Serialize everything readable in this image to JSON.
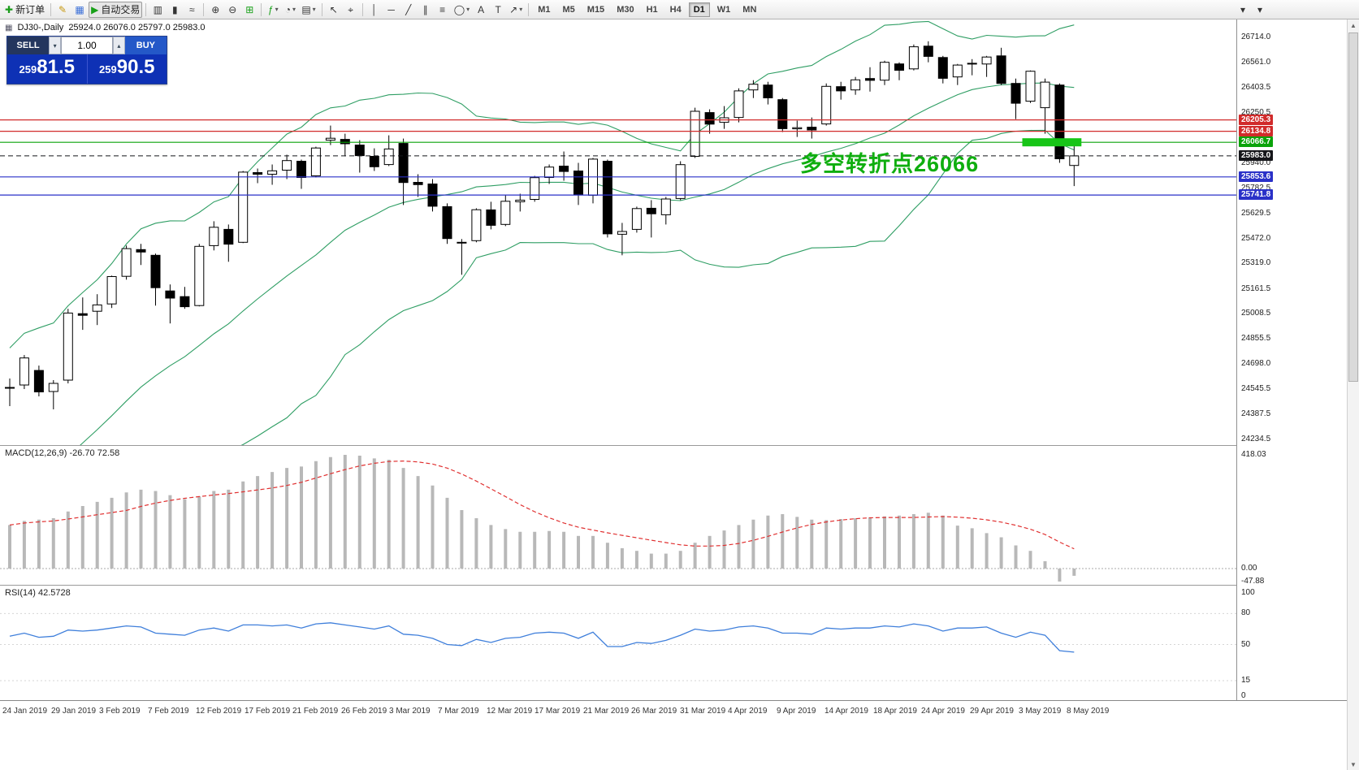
{
  "toolbar": {
    "items": [
      {
        "type": "btn",
        "name": "new-order",
        "glyph": "✚",
        "glyph_color": "#1a9c1a",
        "label": "新订单"
      },
      {
        "type": "sep"
      },
      {
        "type": "btn",
        "name": "metaeditor",
        "glyph": "✎",
        "glyph_color": "#c79810"
      },
      {
        "type": "btn",
        "name": "market",
        "glyph": "▦",
        "glyph_color": "#3a6fd8"
      },
      {
        "type": "btn",
        "name": "auto-trading",
        "glyph": "▶",
        "glyph_color": "#18a018",
        "label": "自动交易",
        "pressed": true
      },
      {
        "type": "sep"
      },
      {
        "type": "btn",
        "name": "bar-chart-mode",
        "glyph": "▥"
      },
      {
        "type": "btn",
        "name": "candlest-mode",
        "glyph": "▮"
      },
      {
        "type": "btn",
        "name": "line-chart-mode",
        "glyph": "≈"
      },
      {
        "type": "sep"
      },
      {
        "type": "btn",
        "name": "zoom-in",
        "glyph": "⊕"
      },
      {
        "type": "btn",
        "name": "zoom-out",
        "glyph": "⊖"
      },
      {
        "type": "btn",
        "name": "tile-windows",
        "glyph": "⊞",
        "glyph_color": "#18a018"
      },
      {
        "type": "sep"
      },
      {
        "type": "btn",
        "name": "indicators",
        "glyph": "ƒ",
        "glyph_color": "#18a018",
        "dropdown": true
      },
      {
        "type": "btn",
        "name": "periods",
        "glyph": "◔",
        "dropdown": true
      },
      {
        "type": "btn",
        "name": "templates",
        "glyph": "▤",
        "dropdown": true
      },
      {
        "type": "sep"
      },
      {
        "type": "btn",
        "name": "cursor",
        "glyph": "↖"
      },
      {
        "type": "btn",
        "name": "crosshair",
        "glyph": "⌖"
      },
      {
        "type": "sep"
      },
      {
        "type": "btn",
        "name": "vertical-line",
        "glyph": "│"
      },
      {
        "type": "btn",
        "name": "horizontal-line",
        "glyph": "─"
      },
      {
        "type": "btn",
        "name": "trendline",
        "glyph": "╱"
      },
      {
        "type": "btn",
        "name": "equidistant-channel",
        "glyph": "∥"
      },
      {
        "type": "btn",
        "name": "fibonacci",
        "glyph": "≡"
      },
      {
        "type": "btn",
        "name": "shapes",
        "glyph": "◯",
        "dropdown": true
      },
      {
        "type": "btn",
        "name": "text",
        "glyph": "A"
      },
      {
        "type": "btn",
        "name": "text-label",
        "glyph": "T"
      },
      {
        "type": "btn",
        "name": "arrows",
        "glyph": "↗",
        "dropdown": true
      },
      {
        "type": "sep"
      }
    ],
    "timeframes": [
      "M1",
      "M5",
      "M15",
      "M30",
      "H1",
      "H4",
      "D1",
      "W1",
      "MN"
    ],
    "active_timeframe": "D1"
  },
  "header": {
    "symbol": "DJ30-,Daily",
    "ohlc": "25924.0 26076.0 25797.0 25983.0"
  },
  "order_panel": {
    "sell_label": "SELL",
    "buy_label": "BUY",
    "volume": "1.00",
    "sell_price": {
      "small": "259",
      "big": "81",
      "frac": ".5"
    },
    "buy_price": {
      "small": "259",
      "big": "90",
      "frac": ".5"
    }
  },
  "main_chart": {
    "annotation": {
      "text": "多空转折点26066",
      "color": "#0fae0f"
    },
    "highlight": {
      "from_candle": 70,
      "to_candle": 73,
      "price": "26066.7",
      "color": "#17c517"
    }
  },
  "price_axis": {
    "ticks": [
      "26714.0",
      "26561.0",
      "26403.5",
      "26250.5",
      "25940.0",
      "25782.5",
      "25629.5",
      "25472.0",
      "25319.0",
      "25161.5",
      "25008.5",
      "24855.5",
      "24698.0",
      "24545.5",
      "24387.5",
      "24234.5"
    ],
    "levels": [
      {
        "value": "26205.3",
        "color": "#d12b2b"
      },
      {
        "value": "26134.8",
        "color": "#d12b2b"
      },
      {
        "value": "26066.7",
        "color": "#0aa30a"
      },
      {
        "value": "25983.0",
        "color": "#15161a",
        "dashed": true,
        "current": true
      },
      {
        "value": "25853.6",
        "color": "#2a31c8"
      },
      {
        "value": "25741.8",
        "color": "#2a31c8"
      }
    ]
  },
  "macd_panel": {
    "label": "MACD(12,26,9) -26.70 72.58",
    "axis": [
      "418.03",
      "0.00",
      "-47.88"
    ]
  },
  "rsi_panel": {
    "label": "RSI(14) 42.5728",
    "axis": [
      "100",
      "80",
      "50",
      "15",
      "0"
    ]
  },
  "date_axis": [
    "24 Jan 2019",
    "29 Jan 2019",
    "3 Feb 2019",
    "7 Feb 2019",
    "12 Feb 2019",
    "17 Feb 2019",
    "21 Feb 2019",
    "26 Feb 2019",
    "3 Mar 2019",
    "7 Mar 2019",
    "12 Mar 2019",
    "17 Mar 2019",
    "21 Mar 2019",
    "26 Mar 2019",
    "31 Mar 2019",
    "4 Apr 2019",
    "9 Apr 2019",
    "14 Apr 2019",
    "18 Apr 2019",
    "24 Apr 2019",
    "29 Apr 2019",
    "3 May 2019",
    "8 May 2019"
  ],
  "chart_data": {
    "type": "candlestick",
    "symbol": "DJ30",
    "timeframe": "Daily",
    "price_range_visible": [
      24234.5,
      26714.0
    ],
    "macd_range_visible": [
      -47.88,
      418.03
    ],
    "rsi_range_visible": [
      0,
      100
    ],
    "candles_ohlc": [
      [
        24555,
        24610,
        24440,
        24553
      ],
      [
        24570,
        24755,
        24545,
        24737
      ],
      [
        24660,
        24690,
        24500,
        24528
      ],
      [
        24530,
        24600,
        24420,
        24580
      ],
      [
        24600,
        25040,
        24580,
        25014
      ],
      [
        25010,
        25110,
        24910,
        25000
      ],
      [
        25025,
        25130,
        24940,
        25064
      ],
      [
        25070,
        25245,
        25045,
        25239
      ],
      [
        25240,
        25430,
        25220,
        25411
      ],
      [
        25405,
        25440,
        25310,
        25390
      ],
      [
        25370,
        25380,
        25060,
        25170
      ],
      [
        25150,
        25190,
        24950,
        25106
      ],
      [
        25115,
        25175,
        25040,
        25053
      ],
      [
        25060,
        25440,
        25055,
        25425
      ],
      [
        25430,
        25580,
        25400,
        25543
      ],
      [
        25530,
        25560,
        25330,
        25439
      ],
      [
        25450,
        25890,
        25445,
        25883
      ],
      [
        25880,
        25905,
        25815,
        25870
      ],
      [
        25870,
        25930,
        25805,
        25891
      ],
      [
        25895,
        25990,
        25840,
        25954
      ],
      [
        25950,
        25960,
        25780,
        25850
      ],
      [
        25860,
        26040,
        25850,
        26032
      ],
      [
        26080,
        26170,
        26050,
        26092
      ],
      [
        26085,
        26120,
        25980,
        26058
      ],
      [
        26050,
        26080,
        25880,
        25985
      ],
      [
        25980,
        26030,
        25890,
        25916
      ],
      [
        25930,
        26110,
        25920,
        26026
      ],
      [
        26060,
        26090,
        25680,
        25819
      ],
      [
        25820,
        25870,
        25730,
        25806
      ],
      [
        25810,
        25840,
        25640,
        25673
      ],
      [
        25670,
        25690,
        25440,
        25473
      ],
      [
        25450,
        25470,
        25250,
        25450
      ],
      [
        25460,
        25660,
        25450,
        25651
      ],
      [
        25650,
        25700,
        25530,
        25555
      ],
      [
        25560,
        25740,
        25550,
        25703
      ],
      [
        25700,
        25750,
        25640,
        25710
      ],
      [
        25715,
        25860,
        25700,
        25849
      ],
      [
        25850,
        25930,
        25810,
        25914
      ],
      [
        25920,
        26010,
        25830,
        25887
      ],
      [
        25890,
        25940,
        25680,
        25746
      ],
      [
        25740,
        25970,
        25690,
        25963
      ],
      [
        25950,
        25960,
        25480,
        25502
      ],
      [
        25500,
        25570,
        25370,
        25517
      ],
      [
        25530,
        25670,
        25510,
        25658
      ],
      [
        25660,
        25710,
        25480,
        25626
      ],
      [
        25620,
        25730,
        25560,
        25717
      ],
      [
        25720,
        25950,
        25710,
        25929
      ],
      [
        25980,
        26280,
        25970,
        26258
      ],
      [
        26250,
        26270,
        26120,
        26179
      ],
      [
        26190,
        26290,
        26150,
        26218
      ],
      [
        26220,
        26400,
        26190,
        26384
      ],
      [
        26390,
        26450,
        26340,
        26425
      ],
      [
        26420,
        26440,
        26300,
        26341
      ],
      [
        26330,
        26340,
        26130,
        26151
      ],
      [
        26150,
        26200,
        26100,
        26157
      ],
      [
        26160,
        26220,
        26090,
        26143
      ],
      [
        26180,
        26430,
        26170,
        26412
      ],
      [
        26410,
        26440,
        26330,
        26384
      ],
      [
        26390,
        26470,
        26360,
        26452
      ],
      [
        26460,
        26530,
        26380,
        26449
      ],
      [
        26450,
        26570,
        26420,
        26560
      ],
      [
        26550,
        26560,
        26450,
        26511
      ],
      [
        26520,
        26670,
        26510,
        26656
      ],
      [
        26660,
        26690,
        26560,
        26597
      ],
      [
        26590,
        26600,
        26430,
        26462
      ],
      [
        26470,
        26550,
        26420,
        26543
      ],
      [
        26550,
        26580,
        26480,
        26554
      ],
      [
        26550,
        26600,
        26470,
        26593
      ],
      [
        26600,
        26650,
        26420,
        26430
      ],
      [
        26430,
        26460,
        26210,
        26308
      ],
      [
        26320,
        26510,
        26310,
        26505
      ],
      [
        26280,
        26460,
        26120,
        26438
      ],
      [
        26420,
        26430,
        25940,
        25965
      ],
      [
        25924,
        26076,
        25797,
        25983
      ]
    ],
    "bollinger": {
      "period": 20,
      "deviation": 2
    },
    "macd": {
      "params": "12,26,9",
      "main": [
        160,
        175,
        180,
        185,
        210,
        230,
        245,
        260,
        280,
        290,
        285,
        270,
        255,
        265,
        285,
        290,
        320,
        340,
        355,
        370,
        375,
        395,
        410,
        418.03,
        415,
        405,
        400,
        370,
        340,
        305,
        260,
        215,
        185,
        160,
        145,
        135,
        135,
        138,
        135,
        120,
        120,
        95,
        75,
        65,
        55,
        55,
        65,
        95,
        120,
        140,
        160,
        180,
        195,
        200,
        190,
        180,
        178,
        182,
        185,
        188,
        192,
        195,
        200,
        205,
        195,
        158,
        148,
        130,
        115,
        85,
        65,
        27,
        -47.88,
        -26.7
      ],
      "current_main": -26.7,
      "current_signal": 72.58
    },
    "rsi": {
      "period": 14,
      "values": [
        58,
        61,
        57,
        58,
        64,
        63,
        64,
        66,
        68,
        67,
        61,
        60,
        59,
        64,
        66,
        63,
        69,
        69,
        68,
        69,
        66,
        70,
        71,
        69,
        67,
        65,
        68,
        60,
        59,
        56,
        50,
        49,
        55,
        52,
        56,
        57,
        61,
        62,
        61,
        56,
        62,
        48,
        48,
        52,
        51,
        54,
        59,
        65,
        63,
        64,
        67,
        68,
        66,
        61,
        61,
        60,
        66,
        65,
        66,
        66,
        68,
        67,
        70,
        68,
        63,
        66,
        66,
        67,
        61,
        57,
        62,
        59,
        44,
        42.57
      ],
      "current": 42.5728
    }
  }
}
